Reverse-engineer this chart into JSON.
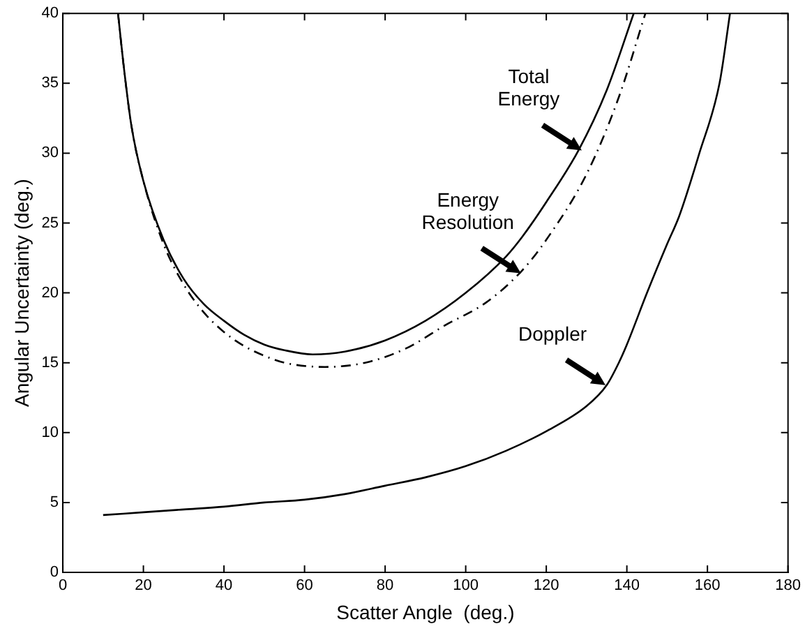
{
  "chart_data": {
    "type": "line",
    "xlabel": "Scatter Angle  (deg.)",
    "ylabel": "Angular Uncertainty (deg.)",
    "xlim": [
      0,
      180
    ],
    "xticks": [
      0,
      20,
      40,
      60,
      80,
      100,
      120,
      140,
      160,
      180
    ],
    "ylim": [
      0,
      40
    ],
    "yticks": [
      0,
      5,
      10,
      15,
      20,
      25,
      30,
      35,
      40
    ],
    "grid": false,
    "legend": false,
    "marker": "none",
    "series": [
      {
        "color": "#000000",
        "line_style": "solid",
        "x": [
          13.7,
          15,
          17,
          20,
          25,
          30,
          35,
          40,
          45,
          50,
          55,
          62,
          70,
          80,
          90,
          100,
          110,
          114,
          120,
          128,
          135,
          141.7
        ],
        "values": [
          40,
          36.5,
          32,
          28,
          23.8,
          21,
          19.2,
          18,
          17,
          16.3,
          15.9,
          15.6,
          15.8,
          16.6,
          18,
          20,
          22.6,
          24,
          26.5,
          30.2,
          34.5,
          40
        ]
      },
      {
        "color": "#000000",
        "line_style": "dashed",
        "x": [
          13.7,
          15,
          17,
          20,
          25,
          30,
          35,
          40,
          45,
          50,
          55,
          65,
          75,
          85,
          95,
          105,
          114,
          120,
          130,
          138,
          144.6
        ],
        "values": [
          40,
          36.5,
          32,
          28,
          23.5,
          20.6,
          18.6,
          17.2,
          16.2,
          15.5,
          15,
          14.7,
          15,
          16,
          17.7,
          19.3,
          21.6,
          23.8,
          28.5,
          34,
          40
        ]
      },
      {
        "color": "#000000",
        "line_style": "solid",
        "x": [
          10,
          20,
          30,
          40,
          50,
          60,
          70,
          80,
          90,
          100,
          110,
          120,
          130,
          135,
          138,
          140,
          145,
          150,
          153,
          158,
          163,
          165.6
        ],
        "values": [
          4.1,
          4.3,
          4.5,
          4.7,
          5,
          5.2,
          5.6,
          6.2,
          6.8,
          7.6,
          8.7,
          10.1,
          11.9,
          13.4,
          15,
          16.3,
          20,
          23.5,
          25.5,
          30,
          35,
          40
        ]
      }
    ],
    "annotations": [
      {
        "text": "Total Energy",
        "x": 128.8,
        "y": 30.2
      },
      {
        "text": "Energy Resolution",
        "x": 113.7,
        "y": 21.4
      },
      {
        "text": "Doppler",
        "x": 134.7,
        "y": 13.4
      }
    ]
  }
}
